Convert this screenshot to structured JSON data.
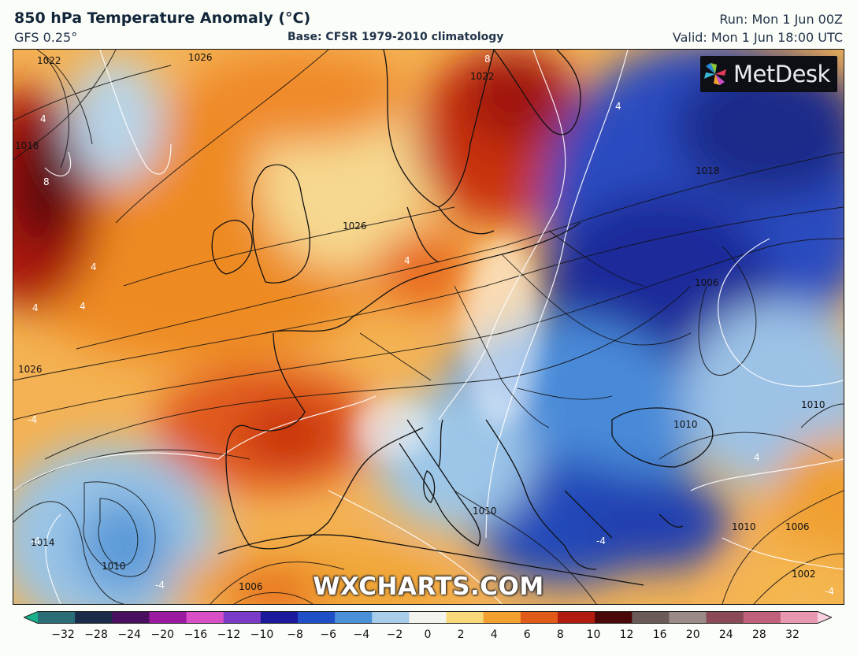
{
  "header": {
    "title": "850 hPa Temperature Anomaly (°C)",
    "model": "GFS 0.25°",
    "base": "Base: CFSR 1979-2010 climatology",
    "run": "Run: Mon 1 Jun 00Z",
    "valid": "Valid: Mon 1 Jun 18:00 UTC"
  },
  "logo": {
    "text": "MetDesk",
    "icon": "pinwheel-icon"
  },
  "watermark": "WXCHARTS.COM",
  "map_labels": {
    "isobars": [
      "1022",
      "1026",
      "1018",
      "1022",
      "1018",
      "1026",
      "1026",
      "1006",
      "1010",
      "1010",
      "1010",
      "1014",
      "1010",
      "1006",
      "1010",
      "1002",
      "1006"
    ],
    "anomalies": [
      "8",
      "4",
      "8",
      "-4",
      "4",
      "4",
      "4",
      "-4",
      "-4",
      "-4",
      "4",
      "-4",
      "4",
      "4"
    ]
  },
  "colorbar": {
    "ticks": [
      "−32",
      "−28",
      "−24",
      "−20",
      "−16",
      "−12",
      "−10",
      "−8",
      "−6",
      "−4",
      "−2",
      "0",
      "2",
      "4",
      "6",
      "8",
      "10",
      "12",
      "16",
      "20",
      "24",
      "28",
      "32"
    ],
    "colors": [
      "#18b08a",
      "#2a6f78",
      "#1b2b4a",
      "#4a1060",
      "#9a1aa0",
      "#d84fc8",
      "#7a3cc8",
      "#1a1a9a",
      "#2050c8",
      "#4a90d8",
      "#a8cde8",
      "#f4f4ee",
      "#f8d878",
      "#f2a030",
      "#e25a18",
      "#b01c10",
      "#4a0808",
      "#6a5a58",
      "#9a8a88",
      "#8a4a58",
      "#c0607a",
      "#e898b0",
      "#f8d0e0"
    ]
  }
}
